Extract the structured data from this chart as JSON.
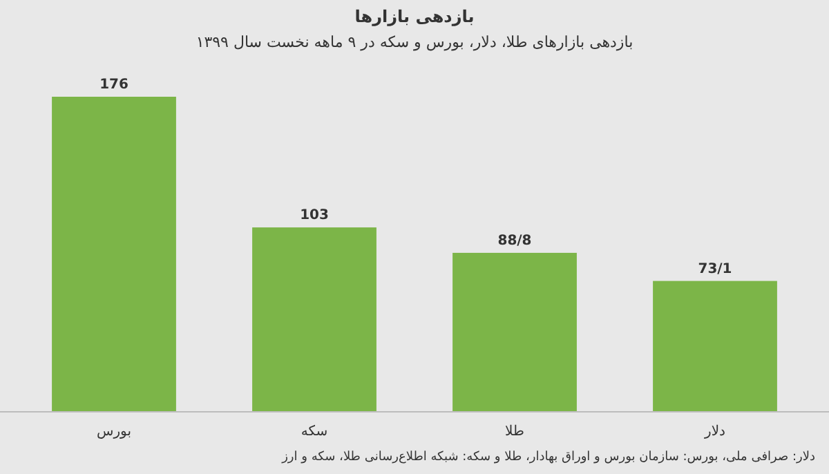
{
  "chart_data": {
    "type": "bar",
    "title": "بازدهی بازارها",
    "subtitle": "بازدهی بازارهای طلا، دلار، بورس و سکه در ۹ ماهه نخست سال ۱۳۹۹",
    "categories": [
      "بورس",
      "سکه",
      "طلا",
      "دلار"
    ],
    "values": [
      176,
      103,
      88.8,
      73.1
    ],
    "value_labels": [
      "176",
      "103",
      "88/8",
      "73/1"
    ],
    "color": "#7cb548",
    "annotations": [
      "دلار: صرافی ملی، بورس: سازمان بورس و اوراق بهادار، طلا و سکه: شبکه اطلاع‌رسانی طلا، سکه و ارز"
    ]
  }
}
